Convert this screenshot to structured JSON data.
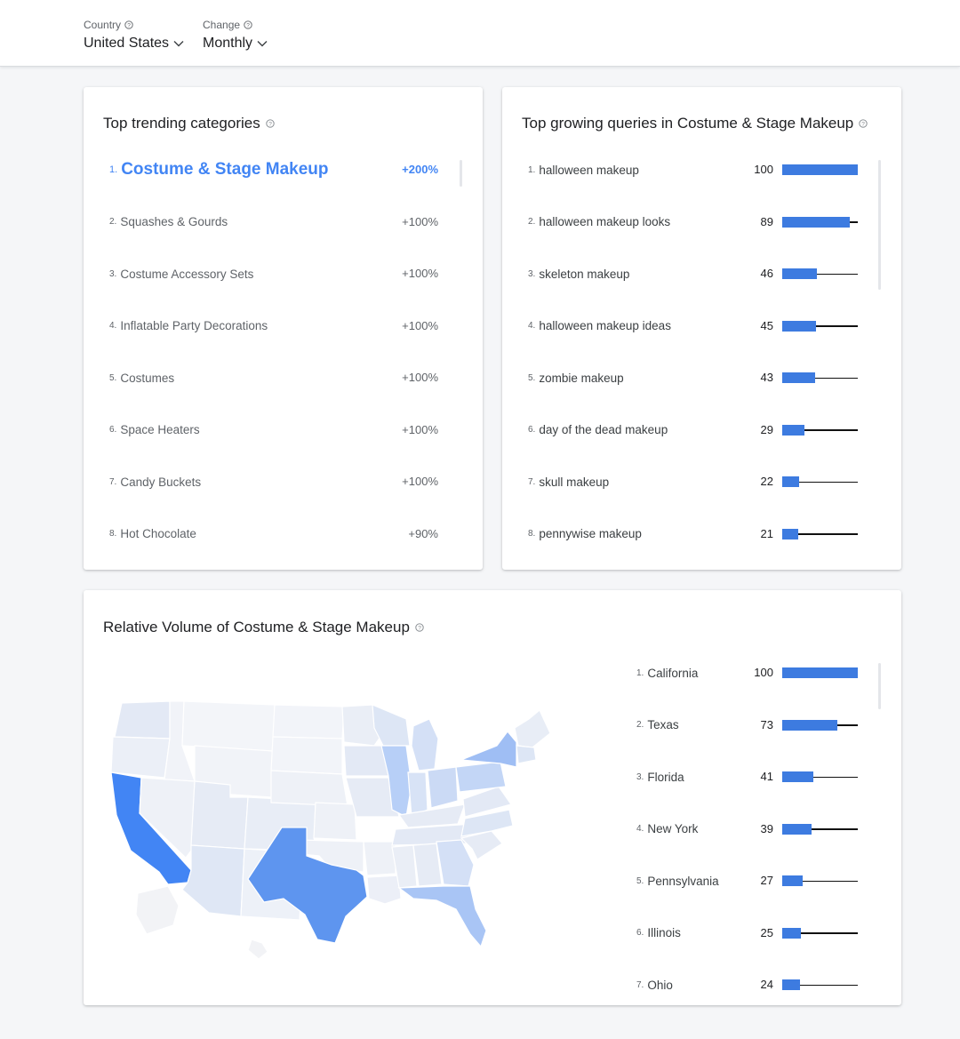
{
  "filters": {
    "country": {
      "label": "Country",
      "value": "United States"
    },
    "change": {
      "label": "Change",
      "value": "Monthly"
    }
  },
  "categories_card": {
    "title": "Top trending categories",
    "items": [
      {
        "rank": "1.",
        "name": "Costume & Stage Makeup",
        "change": "+200%"
      },
      {
        "rank": "2.",
        "name": "Squashes & Gourds",
        "change": "+100%"
      },
      {
        "rank": "3.",
        "name": "Costume Accessory Sets",
        "change": "+100%"
      },
      {
        "rank": "4.",
        "name": "Inflatable Party Decorations",
        "change": "+100%"
      },
      {
        "rank": "5.",
        "name": "Costumes",
        "change": "+100%"
      },
      {
        "rank": "6.",
        "name": "Space Heaters",
        "change": "+100%"
      },
      {
        "rank": "7.",
        "name": "Candy Buckets",
        "change": "+100%"
      },
      {
        "rank": "8.",
        "name": "Hot Chocolate",
        "change": "+90%"
      }
    ]
  },
  "queries_card": {
    "title": "Top growing queries in Costume & Stage Makeup",
    "items": [
      {
        "rank": "1.",
        "name": "halloween makeup",
        "value": 100
      },
      {
        "rank": "2.",
        "name": "halloween makeup looks",
        "value": 89
      },
      {
        "rank": "3.",
        "name": "skeleton makeup",
        "value": 46
      },
      {
        "rank": "4.",
        "name": "halloween makeup ideas",
        "value": 45
      },
      {
        "rank": "5.",
        "name": "zombie makeup",
        "value": 43
      },
      {
        "rank": "6.",
        "name": "day of the dead makeup",
        "value": 29
      },
      {
        "rank": "7.",
        "name": "skull makeup",
        "value": 22
      },
      {
        "rank": "8.",
        "name": "pennywise makeup",
        "value": 21
      }
    ]
  },
  "volume_card": {
    "title": "Relative Volume of Costume & Stage Makeup",
    "states": [
      {
        "rank": "1.",
        "name": "California",
        "value": 100
      },
      {
        "rank": "2.",
        "name": "Texas",
        "value": 73
      },
      {
        "rank": "3.",
        "name": "Florida",
        "value": 41
      },
      {
        "rank": "4.",
        "name": "New York",
        "value": 39
      },
      {
        "rank": "5.",
        "name": "Pennsylvania",
        "value": 27
      },
      {
        "rank": "6.",
        "name": "Illinois",
        "value": 25
      },
      {
        "rank": "7.",
        "name": "Ohio",
        "value": 24
      }
    ]
  },
  "colors": {
    "accent": "#4285f4",
    "bar": "#3d7be0",
    "map_high": "#4285f4",
    "map_mid": "#7aa7f2",
    "map_low": "#e6ecf7"
  }
}
